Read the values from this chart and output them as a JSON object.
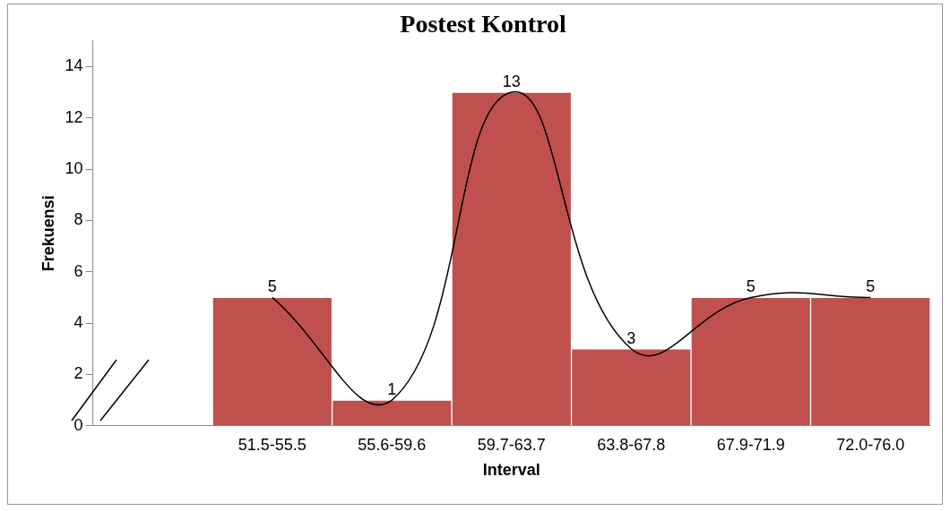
{
  "chart_data": {
    "type": "bar",
    "title": "Postest Kontrol",
    "xlabel": "Interval",
    "ylabel": "Frekuensi",
    "categories": [
      null,
      "51.5-55.5",
      "55.6-59.6",
      "59.7-63.7",
      "63.8-67.8",
      "67.9-71.9",
      "72.0-76.0"
    ],
    "series": [
      {
        "type": "bar",
        "color": "#c0504d",
        "values": [
          null,
          5,
          1,
          13,
          3,
          5,
          5
        ],
        "value_labels": [
          null,
          "5",
          "1",
          "13",
          "3",
          "5",
          "5"
        ]
      },
      {
        "type": "line",
        "color": "#000000",
        "values": [
          null,
          5,
          1,
          13,
          3,
          5,
          5
        ]
      }
    ],
    "ylim": [
      0,
      15
    ],
    "yticks": [
      0,
      2,
      4,
      6,
      8,
      10,
      12,
      14
    ],
    "grid": false,
    "legend": false,
    "marker": "none"
  }
}
